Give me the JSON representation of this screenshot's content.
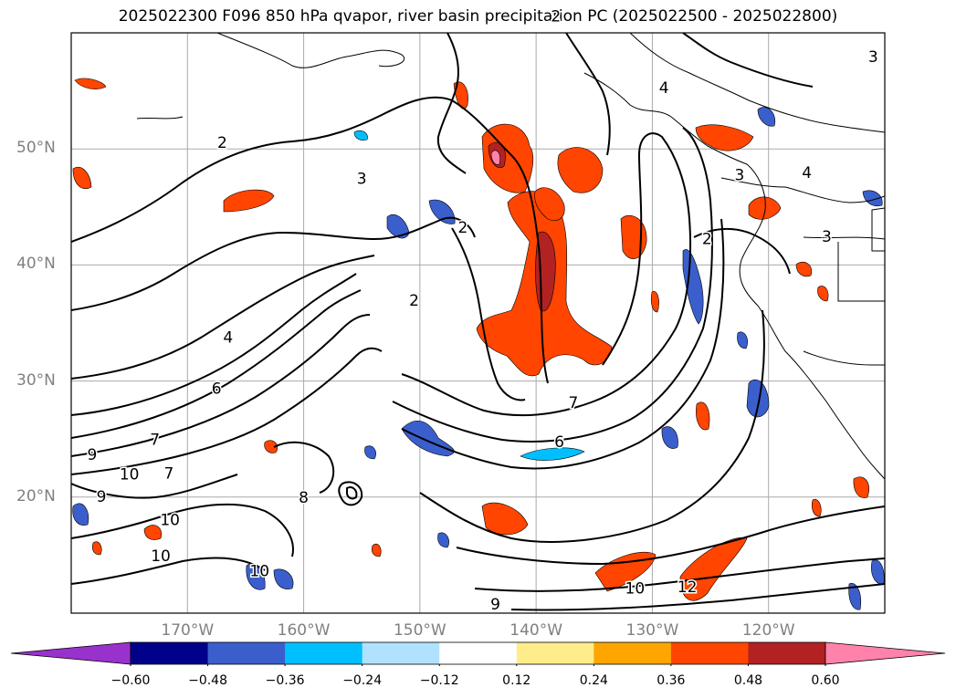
{
  "title": "2025022300 F096 850 hPa qvapor, river basin precipitation PC (2025022500 - 2025022800)",
  "lat_labels": [
    {
      "text": "50°N",
      "lat": 50
    },
    {
      "text": "40°N",
      "lat": 40
    },
    {
      "text": "30°N",
      "lat": 30
    },
    {
      "text": "20°N",
      "lat": 20
    }
  ],
  "lon_labels": [
    {
      "text": "170°W",
      "lon": -170
    },
    {
      "text": "160°W",
      "lon": -160
    },
    {
      "text": "150°W",
      "lon": -150
    },
    {
      "text": "140°W",
      "lon": -140
    },
    {
      "text": "130°W",
      "lon": -130
    },
    {
      "text": "120°W",
      "lon": -120
    }
  ],
  "contour_labels": [
    {
      "text": "2",
      "lon": -167.0,
      "lat": 50.1
    },
    {
      "text": "3",
      "lon": -155.0,
      "lat": 47.0
    },
    {
      "text": "4",
      "lon": -166.5,
      "lat": 33.3
    },
    {
      "text": "6",
      "lon": -167.5,
      "lat": 28.9
    },
    {
      "text": "2",
      "lon": -150.5,
      "lat": 36.5
    },
    {
      "text": "2",
      "lon": -146.3,
      "lat": 42.8
    },
    {
      "text": "4",
      "lon": -129.0,
      "lat": 54.8
    },
    {
      "text": "2",
      "lon": -125.3,
      "lat": 41.8
    },
    {
      "text": "7",
      "lon": -136.8,
      "lat": 27.7
    },
    {
      "text": "6",
      "lon": -138.0,
      "lat": 24.3
    },
    {
      "text": "7",
      "lon": -172.8,
      "lat": 24.5
    },
    {
      "text": "9",
      "lon": -178.2,
      "lat": 23.2
    },
    {
      "text": "10",
      "lon": -175.0,
      "lat": 21.5
    },
    {
      "text": "7",
      "lon": -171.6,
      "lat": 21.6
    },
    {
      "text": "9",
      "lon": -177.4,
      "lat": 19.6
    },
    {
      "text": "10",
      "lon": -171.5,
      "lat": 17.6
    },
    {
      "text": "10",
      "lon": -172.3,
      "lat": 14.5
    },
    {
      "text": "10",
      "lon": -163.8,
      "lat": 13.2
    },
    {
      "text": "8",
      "lon": -160.0,
      "lat": 19.5
    },
    {
      "text": "9",
      "lon": -143.5,
      "lat": 10.3
    },
    {
      "text": "10",
      "lon": -131.5,
      "lat": 11.7
    },
    {
      "text": "12",
      "lon": -127.0,
      "lat": 11.8
    },
    {
      "text": "3",
      "lon": -122.5,
      "lat": 47.3
    },
    {
      "text": "4",
      "lon": -116.7,
      "lat": 47.5
    },
    {
      "text": "3",
      "lon": -115.0,
      "lat": 42.0
    },
    {
      "text": "3",
      "lon": -111.0,
      "lat": 57.5
    },
    {
      "text": "2",
      "lon": -138.3,
      "lat": 61.0
    }
  ],
  "colorbar": {
    "ticks": [
      "−0.60",
      "−0.48",
      "−0.36",
      "−0.24",
      "−0.12",
      "0.12",
      "0.24",
      "0.36",
      "0.48",
      "0.60"
    ],
    "colors": [
      "#9932cc",
      "#00008b",
      "#3a5fcd",
      "#00bfff",
      "#b0e2ff",
      "#ffffff",
      "#ffec8b",
      "#ffa500",
      "#ff4500",
      "#b22222",
      "#ff82ab"
    ]
  }
}
